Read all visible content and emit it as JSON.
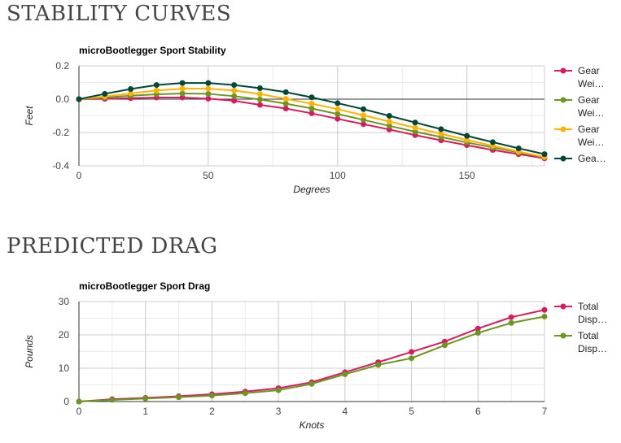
{
  "sections": [
    {
      "heading": "STABILITY CURVES"
    },
    {
      "heading": "PREDICTED DRAG"
    }
  ],
  "chart_data": [
    {
      "type": "line",
      "title": "microBootlegger Sport Stability",
      "xlabel": "Degrees",
      "ylabel": "Feet",
      "xlim": [
        0,
        180
      ],
      "ylim": [
        -0.4,
        0.2
      ],
      "xticks": [
        0,
        50,
        100,
        150
      ],
      "xtick_labels": [
        "0",
        "50",
        "100",
        "150"
      ],
      "yticks": [
        -0.4,
        -0.2,
        0,
        0.2
      ],
      "ytick_labels": [
        "-0.4",
        "-0.2",
        "0.0",
        "0.2"
      ],
      "xminor": 25,
      "yminor": 0.1,
      "grid": true,
      "legend": "right",
      "x": [
        0,
        10,
        20,
        30,
        40,
        50,
        60,
        70,
        80,
        90,
        100,
        110,
        120,
        130,
        140,
        150,
        160,
        170,
        180
      ],
      "series": [
        {
          "name": "Gear Wei…",
          "legend_lines": [
            "Gear",
            "Wei…"
          ],
          "color": "#d81b60",
          "values": [
            0,
            0.002,
            0.006,
            0.01,
            0.01,
            0.003,
            -0.01,
            -0.034,
            -0.056,
            -0.085,
            -0.118,
            -0.15,
            -0.182,
            -0.216,
            -0.247,
            -0.276,
            -0.305,
            -0.33,
            -0.355
          ]
        },
        {
          "name": "Gear Wei…",
          "legend_lines": [
            "Gear",
            "Wei…"
          ],
          "color": "#6b961f",
          "values": [
            0,
            0.01,
            0.021,
            0.029,
            0.034,
            0.032,
            0.018,
            -0.002,
            -0.027,
            -0.056,
            -0.089,
            -0.124,
            -0.16,
            -0.195,
            -0.227,
            -0.26,
            -0.29,
            -0.32,
            -0.348
          ]
        },
        {
          "name": "Gear Wei…",
          "legend_lines": [
            "Gear",
            "Wei…"
          ],
          "color": "#ffb300",
          "values": [
            0,
            0.016,
            0.035,
            0.052,
            0.063,
            0.063,
            0.052,
            0.031,
            0.002,
            -0.027,
            -0.06,
            -0.097,
            -0.134,
            -0.171,
            -0.208,
            -0.245,
            -0.28,
            -0.315,
            -0.347
          ]
        },
        {
          "name": "Gea…",
          "legend_lines": [
            "Gea…"
          ],
          "color": "#00463a",
          "values": [
            0,
            0.032,
            0.061,
            0.085,
            0.097,
            0.097,
            0.085,
            0.066,
            0.042,
            0.011,
            -0.024,
            -0.06,
            -0.1,
            -0.14,
            -0.18,
            -0.22,
            -0.258,
            -0.295,
            -0.33
          ]
        }
      ]
    },
    {
      "type": "line",
      "title": "microBootlegger Sport Drag",
      "xlabel": "Knots",
      "ylabel": "Pounds",
      "xlim": [
        0,
        7
      ],
      "ylim": [
        0,
        30
      ],
      "xticks": [
        0,
        1,
        2,
        3,
        4,
        5,
        6,
        7
      ],
      "xtick_labels": [
        "0",
        "1",
        "2",
        "3",
        "4",
        "5",
        "6",
        "7"
      ],
      "yticks": [
        0,
        10,
        20,
        30
      ],
      "ytick_labels": [
        "0",
        "10",
        "20",
        "30"
      ],
      "xminor": 0.5,
      "yminor": 5,
      "grid": true,
      "legend": "right",
      "x": [
        0,
        0.5,
        1,
        1.5,
        2,
        2.5,
        3,
        3.5,
        4,
        4.5,
        5,
        5.5,
        6,
        6.5,
        7
      ],
      "series": [
        {
          "name": "Total Disp…",
          "legend_lines": [
            "Total",
            "Disp…"
          ],
          "color": "#d81b60",
          "values": [
            0,
            0.7,
            1.1,
            1.6,
            2.2,
            3.0,
            4.0,
            5.8,
            8.8,
            11.8,
            14.9,
            18.0,
            21.9,
            25.3,
            27.5
          ]
        },
        {
          "name": "Total Disp…",
          "legend_lines": [
            "Total",
            "Disp…"
          ],
          "color": "#6b961f",
          "values": [
            0,
            0.5,
            0.9,
            1.3,
            1.8,
            2.5,
            3.4,
            5.3,
            8.2,
            11.0,
            13.0,
            16.9,
            20.6,
            23.6,
            25.5
          ]
        }
      ]
    }
  ]
}
